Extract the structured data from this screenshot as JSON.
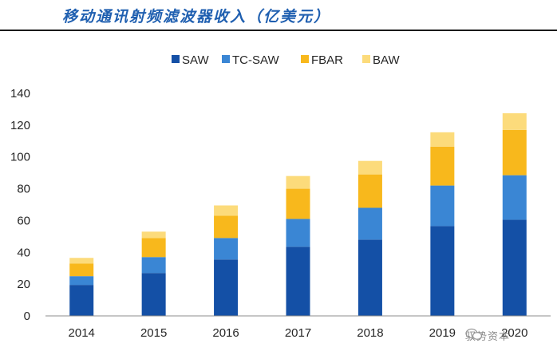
{
  "header": {
    "title": "移动通讯射频滤波器收入（亿美元）"
  },
  "chart_data": {
    "type": "bar",
    "stacked": true,
    "title": "移动通讯射频滤波器收入（亿美元）",
    "categories": [
      "2014",
      "2015",
      "2016",
      "2017",
      "2018",
      "2019",
      "2020"
    ],
    "series": [
      {
        "name": "SAW",
        "color": "#1450a6",
        "values": [
          19.5,
          27,
          35.5,
          43.5,
          48,
          56.5,
          60.5
        ]
      },
      {
        "name": "TC-SAW",
        "color": "#3a86d4",
        "values": [
          5.5,
          10,
          13.5,
          17.5,
          20,
          25.5,
          28
        ]
      },
      {
        "name": "FBAR",
        "color": "#f8b81c",
        "values": [
          8,
          12,
          14,
          19,
          21,
          24.5,
          28.5
        ]
      },
      {
        "name": "BAW",
        "color": "#fcdb7b",
        "values": [
          3.5,
          4,
          6.5,
          8,
          8.5,
          9,
          10.5
        ]
      }
    ],
    "ylim": [
      0,
      140
    ],
    "yticks": [
      0,
      20,
      40,
      60,
      80,
      100,
      120,
      140
    ],
    "legend_position": "top-center",
    "grid": false
  },
  "watermark": {
    "text": "驭势资本",
    "icon": "wechat-icon"
  }
}
